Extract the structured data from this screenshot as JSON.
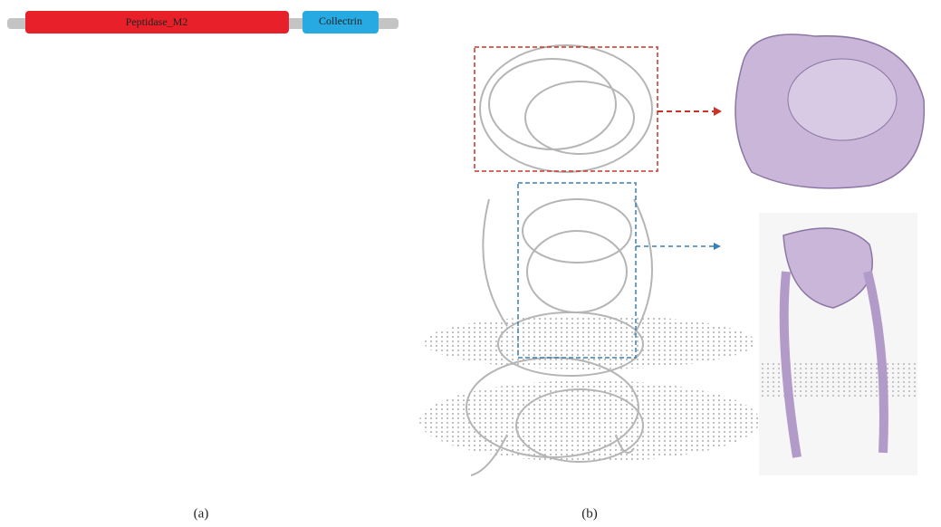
{
  "panel_a": {
    "label": "(a)",
    "domains": [
      "Peptidase_M2",
      "Collectrin"
    ]
  },
  "panel_b": {
    "label": "(b)"
  }
}
